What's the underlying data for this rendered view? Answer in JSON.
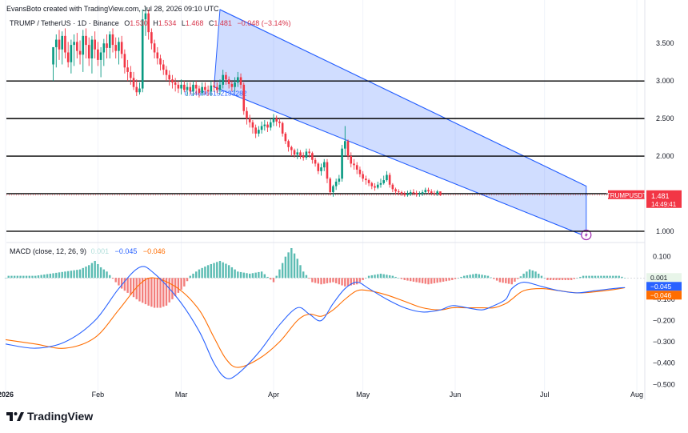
{
  "credit": "EvansBoto created with TradingView.com, Jul 28, 2026 09:10 UTC",
  "legend": {
    "symbol": "TRUMP / TetherUS · 1D · Binance",
    "o_label": "O",
    "o_value": "1.530",
    "h_label": "H",
    "h_value": "1.534",
    "l_label": "L",
    "l_value": "1.468",
    "c_label": "C",
    "c_value": "1.481",
    "change": "−0.048 (−3.14%)"
  },
  "macd_legend": {
    "name": "MACD (close, 12, 26, 9)",
    "histogram": "0.001",
    "macd": "−0.045",
    "signal": "−0.046"
  },
  "annotation": "0.946466152133282",
  "price_tag": {
    "symbol": "TRUMPUSDT",
    "price": "1.481",
    "countdown": "14:49:41"
  },
  "macd_tags": {
    "histogram": "0.001",
    "macd": "−0.045",
    "signal": "−0.046"
  },
  "brand": {
    "name": "TradingView"
  },
  "colors": {
    "up": "#089981",
    "down": "#f23645",
    "channel": "#2962ff",
    "macd_line": "#2962ff",
    "signal_line": "#ff6d00",
    "hist_up": "#26a69a",
    "hist_down": "#ef5350",
    "alert": "#9c27b0"
  },
  "chart_data": [
    {
      "type": "candlestick",
      "title": "TRUMP / TetherUS · 1D · Binance",
      "x_ticks": [
        "2026",
        "Feb",
        "Mar",
        "Apr",
        "May",
        "Jun",
        "Jul",
        "Aug"
      ],
      "x_tick_days": [
        0,
        31,
        59,
        90,
        120,
        151,
        181,
        212
      ],
      "y_ticks": [
        "1.000",
        "1.500",
        "2.000",
        "2.500",
        "3.000",
        "3.500"
      ],
      "ylim": [
        0.85,
        3.95
      ],
      "horizontal_lines": [
        1.0,
        1.5,
        2.0,
        2.5,
        3.0
      ],
      "descending_channel": {
        "upper": [
          [
            72,
            3.95
          ],
          [
            195,
            1.6
          ]
        ],
        "lower": [
          [
            70,
            2.92
          ],
          [
            195,
            0.93
          ]
        ]
      },
      "ohlc": {
        "start": "2026-01-17",
        "open": [
          3.22,
          3.45,
          3.55,
          3.42,
          3.6,
          3.38,
          3.25,
          3.48,
          3.52,
          3.4,
          3.35,
          3.6,
          3.48,
          3.3,
          3.55,
          3.42,
          3.28,
          3.38,
          3.5,
          3.44,
          3.62,
          3.48,
          3.4,
          3.52,
          3.36,
          3.18,
          3.12,
          3.04,
          2.92,
          2.85,
          2.9,
          3.82,
          3.9,
          3.65,
          3.5,
          3.38,
          3.3,
          3.22,
          3.15,
          3.08,
          3.02,
          2.98,
          2.95,
          2.9,
          2.95,
          2.88,
          2.92,
          2.86,
          2.95,
          2.9,
          2.84,
          2.92,
          2.88,
          2.86,
          2.94,
          2.92,
          2.88,
          2.95,
          3.08,
          3.02,
          2.96,
          2.92,
          2.98,
          3.05,
          2.95,
          2.6,
          2.5,
          2.45,
          2.38,
          2.3,
          2.35,
          2.4,
          2.42,
          2.38,
          2.45,
          2.5,
          2.46,
          2.44,
          2.3,
          2.2,
          2.12,
          2.08,
          2.02,
          2.05,
          2.0,
          1.98,
          2.06,
          2.04,
          1.95,
          1.9,
          1.8,
          1.85,
          1.92,
          1.7,
          1.52,
          1.6,
          1.66,
          1.7,
          2.1,
          2.2,
          2.0,
          1.9,
          1.88,
          1.82,
          1.76,
          1.7,
          1.68,
          1.64,
          1.6,
          1.58,
          1.62,
          1.64,
          1.68,
          1.75,
          1.62,
          1.56,
          1.53,
          1.52,
          1.5,
          1.48,
          1.5,
          1.52,
          1.51,
          1.49,
          1.5,
          1.52,
          1.55,
          1.53,
          1.51,
          1.5,
          1.53
        ],
        "high": [
          3.45,
          3.62,
          3.68,
          3.66,
          3.7,
          3.52,
          3.55,
          3.62,
          3.64,
          3.54,
          3.68,
          3.7,
          3.58,
          3.6,
          3.66,
          3.52,
          3.45,
          3.56,
          3.62,
          3.66,
          3.7,
          3.58,
          3.58,
          3.6,
          3.42,
          3.28,
          3.2,
          3.12,
          3.02,
          2.98,
          3.95,
          3.98,
          3.95,
          3.7,
          3.55,
          3.45,
          3.35,
          3.28,
          3.2,
          3.14,
          3.08,
          3.04,
          3.0,
          3.02,
          3.0,
          2.98,
          2.98,
          3.0,
          3.0,
          2.94,
          2.98,
          2.98,
          2.94,
          3.0,
          3.0,
          2.98,
          3.02,
          3.15,
          3.12,
          3.06,
          3.0,
          3.05,
          3.12,
          3.1,
          2.98,
          2.65,
          2.55,
          2.48,
          2.42,
          2.4,
          2.46,
          2.48,
          2.46,
          2.5,
          2.56,
          2.54,
          2.5,
          2.46,
          2.32,
          2.22,
          2.14,
          2.1,
          2.1,
          2.08,
          2.05,
          2.1,
          2.1,
          2.06,
          1.98,
          1.92,
          1.9,
          1.96,
          1.96,
          1.72,
          1.62,
          1.7,
          1.75,
          2.15,
          2.4,
          2.22,
          2.05,
          1.96,
          1.92,
          1.86,
          1.8,
          1.74,
          1.7,
          1.66,
          1.64,
          1.66,
          1.7,
          1.74,
          1.8,
          1.78,
          1.64,
          1.58,
          1.56,
          1.54,
          1.53,
          1.54,
          1.55,
          1.56,
          1.54,
          1.53,
          1.55,
          1.58,
          1.58,
          1.56,
          1.54,
          1.55,
          1.53
        ],
        "low": [
          3.0,
          3.18,
          3.28,
          3.22,
          3.3,
          3.18,
          3.1,
          3.2,
          3.3,
          3.22,
          3.12,
          3.3,
          3.2,
          3.1,
          3.3,
          3.2,
          3.05,
          3.2,
          3.3,
          3.3,
          3.38,
          3.3,
          3.22,
          3.3,
          3.1,
          3.0,
          2.95,
          2.88,
          2.8,
          2.82,
          2.85,
          3.6,
          3.55,
          3.42,
          3.3,
          3.22,
          3.14,
          3.08,
          3.0,
          2.94,
          2.9,
          2.86,
          2.84,
          2.82,
          2.85,
          2.8,
          2.82,
          2.8,
          2.82,
          2.78,
          2.8,
          2.82,
          2.8,
          2.8,
          2.86,
          2.84,
          2.82,
          2.9,
          2.95,
          2.9,
          2.86,
          2.86,
          2.92,
          2.9,
          2.55,
          2.42,
          2.38,
          2.3,
          2.24,
          2.26,
          2.3,
          2.34,
          2.32,
          2.34,
          2.4,
          2.4,
          2.38,
          2.26,
          2.16,
          2.06,
          2.0,
          1.98,
          1.96,
          1.96,
          1.94,
          1.95,
          1.98,
          1.9,
          1.86,
          1.76,
          1.74,
          1.8,
          1.64,
          1.48,
          1.46,
          1.55,
          1.62,
          1.66,
          2.0,
          1.95,
          1.85,
          1.82,
          1.76,
          1.72,
          1.66,
          1.62,
          1.6,
          1.56,
          1.54,
          1.56,
          1.58,
          1.62,
          1.66,
          1.58,
          1.52,
          1.49,
          1.48,
          1.47,
          1.46,
          1.46,
          1.47,
          1.48,
          1.46,
          1.46,
          1.47,
          1.5,
          1.5,
          1.48,
          1.47,
          1.47,
          1.47
        ],
        "close": [
          3.45,
          3.55,
          3.42,
          3.6,
          3.38,
          3.25,
          3.48,
          3.52,
          3.4,
          3.35,
          3.6,
          3.48,
          3.3,
          3.55,
          3.42,
          3.28,
          3.38,
          3.5,
          3.44,
          3.62,
          3.48,
          3.4,
          3.52,
          3.36,
          3.18,
          3.12,
          3.04,
          2.92,
          2.85,
          2.9,
          3.82,
          3.9,
          3.65,
          3.5,
          3.38,
          3.3,
          3.22,
          3.15,
          3.08,
          3.02,
          2.98,
          2.95,
          2.9,
          2.95,
          2.88,
          2.92,
          2.86,
          2.95,
          2.9,
          2.84,
          2.92,
          2.88,
          2.86,
          2.94,
          2.92,
          2.88,
          2.95,
          3.08,
          3.02,
          2.96,
          2.92,
          2.98,
          3.05,
          2.95,
          2.6,
          2.5,
          2.45,
          2.38,
          2.3,
          2.35,
          2.4,
          2.42,
          2.38,
          2.45,
          2.5,
          2.46,
          2.44,
          2.3,
          2.2,
          2.12,
          2.08,
          2.02,
          2.05,
          2.0,
          1.98,
          2.06,
          2.04,
          1.95,
          1.9,
          1.8,
          1.85,
          1.92,
          1.7,
          1.52,
          1.6,
          1.66,
          1.7,
          2.1,
          2.2,
          2.0,
          1.9,
          1.88,
          1.82,
          1.76,
          1.7,
          1.68,
          1.64,
          1.6,
          1.58,
          1.62,
          1.64,
          1.68,
          1.75,
          1.62,
          1.56,
          1.53,
          1.52,
          1.5,
          1.48,
          1.5,
          1.52,
          1.51,
          1.49,
          1.5,
          1.52,
          1.55,
          1.53,
          1.51,
          1.5,
          1.53,
          1.481
        ]
      }
    },
    {
      "type": "macd",
      "title": "MACD (close, 12, 26, 9)",
      "y_ticks": [
        "0.100",
        "−0.100",
        "−0.200",
        "−0.300",
        "−0.400",
        "−0.500"
      ],
      "ylim": [
        -0.51,
        0.14
      ],
      "series": [
        {
          "name": "MACD",
          "points": [
            [
              0,
              -0.31
            ],
            [
              10,
              -0.33
            ],
            [
              20,
              -0.3
            ],
            [
              30,
              -0.2
            ],
            [
              38,
              -0.05
            ],
            [
              45,
              0.05
            ],
            [
              50,
              0.02
            ],
            [
              58,
              -0.1
            ],
            [
              65,
              -0.25
            ],
            [
              70,
              -0.4
            ],
            [
              74,
              -0.47
            ],
            [
              78,
              -0.45
            ],
            [
              85,
              -0.35
            ],
            [
              92,
              -0.22
            ],
            [
              98,
              -0.14
            ],
            [
              102,
              -0.17
            ],
            [
              106,
              -0.2
            ],
            [
              110,
              -0.12
            ],
            [
              114,
              -0.05
            ],
            [
              118,
              -0.02
            ],
            [
              122,
              -0.05
            ],
            [
              128,
              -0.1
            ],
            [
              134,
              -0.14
            ],
            [
              140,
              -0.16
            ],
            [
              146,
              -0.15
            ],
            [
              150,
              -0.13
            ],
            [
              155,
              -0.14
            ],
            [
              160,
              -0.15
            ],
            [
              164,
              -0.13
            ],
            [
              168,
              -0.1
            ],
            [
              170,
              -0.05
            ],
            [
              174,
              -0.02
            ],
            [
              180,
              -0.04
            ],
            [
              186,
              -0.06
            ],
            [
              192,
              -0.07
            ],
            [
              198,
              -0.06
            ],
            [
              204,
              -0.05
            ],
            [
              208,
              -0.045
            ]
          ]
        },
        {
          "name": "Signal",
          "points": [
            [
              0,
              -0.29
            ],
            [
              10,
              -0.31
            ],
            [
              20,
              -0.33
            ],
            [
              30,
              -0.28
            ],
            [
              38,
              -0.15
            ],
            [
              45,
              -0.03
            ],
            [
              50,
              0.0
            ],
            [
              58,
              -0.05
            ],
            [
              65,
              -0.15
            ],
            [
              70,
              -0.28
            ],
            [
              74,
              -0.38
            ],
            [
              78,
              -0.42
            ],
            [
              85,
              -0.38
            ],
            [
              92,
              -0.3
            ],
            [
              98,
              -0.2
            ],
            [
              102,
              -0.17
            ],
            [
              106,
              -0.18
            ],
            [
              110,
              -0.15
            ],
            [
              114,
              -0.1
            ],
            [
              118,
              -0.06
            ],
            [
              122,
              -0.06
            ],
            [
              128,
              -0.08
            ],
            [
              134,
              -0.11
            ],
            [
              140,
              -0.14
            ],
            [
              146,
              -0.15
            ],
            [
              150,
              -0.14
            ],
            [
              155,
              -0.14
            ],
            [
              160,
              -0.14
            ],
            [
              164,
              -0.14
            ],
            [
              168,
              -0.12
            ],
            [
              170,
              -0.1
            ],
            [
              174,
              -0.06
            ],
            [
              180,
              -0.05
            ],
            [
              186,
              -0.06
            ],
            [
              192,
              -0.07
            ],
            [
              198,
              -0.065
            ],
            [
              204,
              -0.055
            ],
            [
              208,
              -0.046
            ]
          ]
        }
      ],
      "histogram": [
        [
          1,
          0.01
        ],
        [
          5,
          0.01
        ],
        [
          10,
          0.01
        ],
        [
          15,
          0.02
        ],
        [
          20,
          0.03
        ],
        [
          25,
          0.04
        ],
        [
          28,
          0.06
        ],
        [
          30,
          0.08
        ],
        [
          32,
          0.05
        ],
        [
          34,
          0.03
        ],
        [
          37,
          -0.02
        ],
        [
          39,
          -0.05
        ],
        [
          42,
          -0.08
        ],
        [
          45,
          -0.11
        ],
        [
          48,
          -0.13
        ],
        [
          50,
          -0.14
        ],
        [
          52,
          -0.14
        ],
        [
          54,
          -0.13
        ],
        [
          56,
          -0.1
        ],
        [
          58,
          -0.07
        ],
        [
          60,
          -0.04
        ],
        [
          62,
          0.01
        ],
        [
          65,
          0.04
        ],
        [
          68,
          0.06
        ],
        [
          70,
          0.07
        ],
        [
          72,
          0.08
        ],
        [
          75,
          0.06
        ],
        [
          78,
          0.03
        ],
        [
          82,
          0.02
        ],
        [
          86,
          0.03
        ],
        [
          90,
          -0.02
        ],
        [
          94,
          0.1
        ],
        [
          96,
          0.14
        ],
        [
          98,
          0.09
        ],
        [
          100,
          0.03
        ],
        [
          103,
          -0.02
        ],
        [
          106,
          -0.03
        ],
        [
          110,
          -0.02
        ],
        [
          114,
          -0.04
        ],
        [
          118,
          -0.03
        ],
        [
          122,
          0.01
        ],
        [
          126,
          0.02
        ],
        [
          130,
          0.01
        ],
        [
          134,
          -0.01
        ],
        [
          138,
          -0.02
        ],
        [
          142,
          -0.03
        ],
        [
          146,
          -0.02
        ],
        [
          150,
          -0.01
        ],
        [
          154,
          0.01
        ],
        [
          158,
          0.02
        ],
        [
          162,
          0.01
        ],
        [
          166,
          -0.02
        ],
        [
          170,
          -0.03
        ],
        [
          174,
          0.02
        ],
        [
          176,
          0.04
        ],
        [
          178,
          0.03
        ],
        [
          182,
          -0.01
        ],
        [
          186,
          -0.01
        ],
        [
          190,
          -0.01
        ],
        [
          194,
          0.01
        ],
        [
          198,
          0.01
        ],
        [
          202,
          0.01
        ],
        [
          206,
          0.01
        ],
        [
          208,
          0.001
        ]
      ]
    }
  ]
}
